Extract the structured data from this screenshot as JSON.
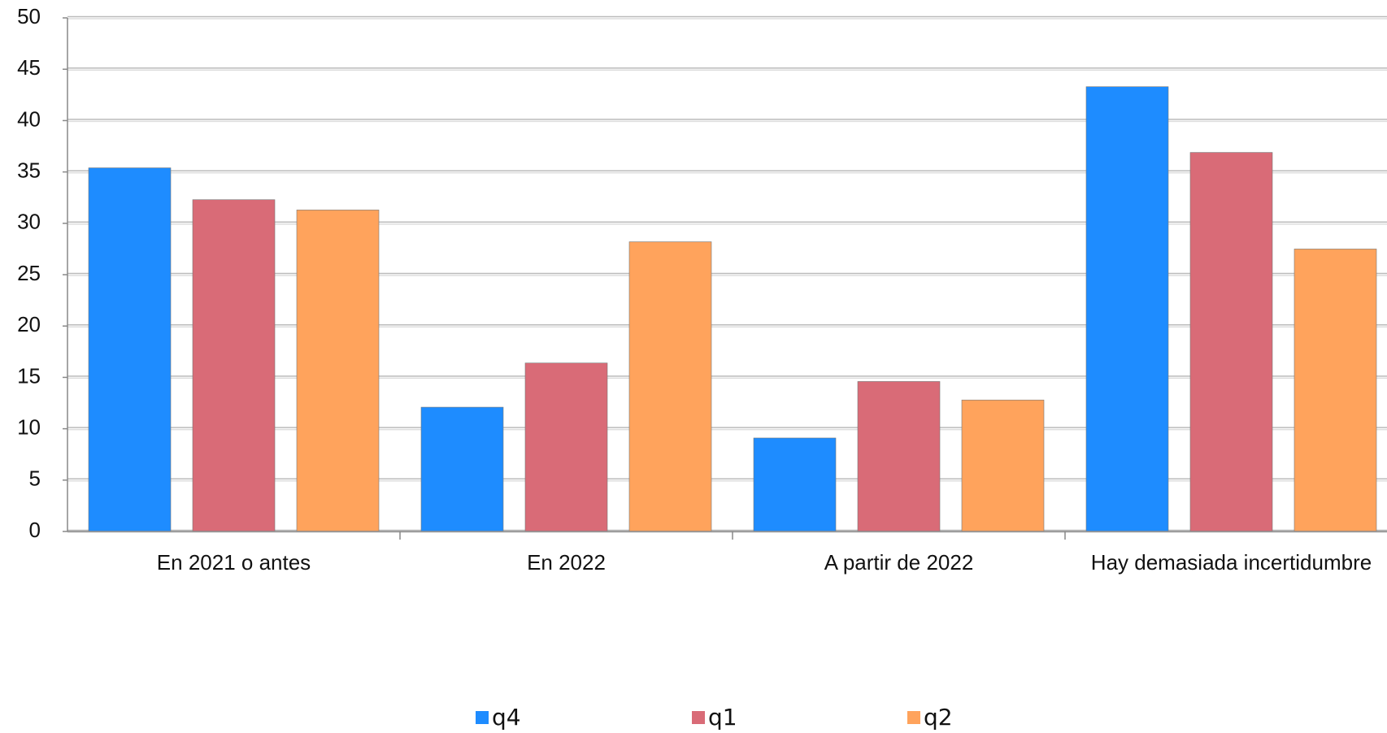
{
  "chart_data": {
    "type": "bar",
    "categories": [
      "En 2021 o antes",
      "En 2022",
      "A partir de 2022",
      "Hay demasiada incertidumbre"
    ],
    "series": [
      {
        "name": "q4",
        "color": "#1e8cff",
        "values": [
          35.4,
          12.1,
          9.1,
          43.3
        ]
      },
      {
        "name": "q1",
        "color": "#d96b77",
        "values": [
          32.3,
          16.4,
          14.6,
          36.9
        ]
      },
      {
        "name": "q2",
        "color": "#ffa35c",
        "values": [
          31.3,
          28.2,
          12.8,
          27.5
        ]
      }
    ],
    "ylim": [
      0,
      50
    ],
    "yticks": [
      0,
      5,
      10,
      15,
      20,
      25,
      30,
      35,
      40,
      45,
      50
    ],
    "grid": true,
    "legend": "bottom"
  }
}
